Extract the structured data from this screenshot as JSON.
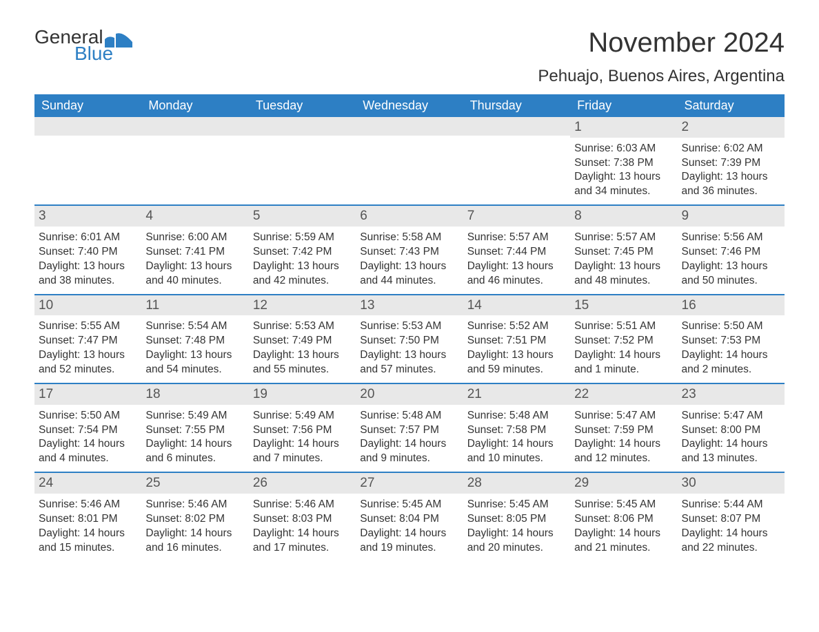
{
  "brand": {
    "general": "General",
    "blue": "Blue",
    "wave_color": "#2d7fc4"
  },
  "title": "November 2024",
  "location": "Pehuajo, Buenos Aires, Argentina",
  "colors": {
    "header_bg": "#2d7fc4",
    "header_text": "#ffffff",
    "day_num_bg": "#e8e8e8",
    "week_border": "#2d7fc4",
    "text": "#333333",
    "background": "#ffffff"
  },
  "typography": {
    "month_title_fontsize": 40,
    "location_fontsize": 24,
    "day_header_fontsize": 18,
    "day_num_fontsize": 19,
    "cell_fontsize": 15.5,
    "font_family": "Arial"
  },
  "day_headers": [
    "Sunday",
    "Monday",
    "Tuesday",
    "Wednesday",
    "Thursday",
    "Friday",
    "Saturday"
  ],
  "weeks": [
    [
      {
        "empty": true
      },
      {
        "empty": true
      },
      {
        "empty": true
      },
      {
        "empty": true
      },
      {
        "empty": true
      },
      {
        "num": "1",
        "sunrise": "Sunrise: 6:03 AM",
        "sunset": "Sunset: 7:38 PM",
        "daylight1": "Daylight: 13 hours",
        "daylight2": "and 34 minutes."
      },
      {
        "num": "2",
        "sunrise": "Sunrise: 6:02 AM",
        "sunset": "Sunset: 7:39 PM",
        "daylight1": "Daylight: 13 hours",
        "daylight2": "and 36 minutes."
      }
    ],
    [
      {
        "num": "3",
        "sunrise": "Sunrise: 6:01 AM",
        "sunset": "Sunset: 7:40 PM",
        "daylight1": "Daylight: 13 hours",
        "daylight2": "and 38 minutes."
      },
      {
        "num": "4",
        "sunrise": "Sunrise: 6:00 AM",
        "sunset": "Sunset: 7:41 PM",
        "daylight1": "Daylight: 13 hours",
        "daylight2": "and 40 minutes."
      },
      {
        "num": "5",
        "sunrise": "Sunrise: 5:59 AM",
        "sunset": "Sunset: 7:42 PM",
        "daylight1": "Daylight: 13 hours",
        "daylight2": "and 42 minutes."
      },
      {
        "num": "6",
        "sunrise": "Sunrise: 5:58 AM",
        "sunset": "Sunset: 7:43 PM",
        "daylight1": "Daylight: 13 hours",
        "daylight2": "and 44 minutes."
      },
      {
        "num": "7",
        "sunrise": "Sunrise: 5:57 AM",
        "sunset": "Sunset: 7:44 PM",
        "daylight1": "Daylight: 13 hours",
        "daylight2": "and 46 minutes."
      },
      {
        "num": "8",
        "sunrise": "Sunrise: 5:57 AM",
        "sunset": "Sunset: 7:45 PM",
        "daylight1": "Daylight: 13 hours",
        "daylight2": "and 48 minutes."
      },
      {
        "num": "9",
        "sunrise": "Sunrise: 5:56 AM",
        "sunset": "Sunset: 7:46 PM",
        "daylight1": "Daylight: 13 hours",
        "daylight2": "and 50 minutes."
      }
    ],
    [
      {
        "num": "10",
        "sunrise": "Sunrise: 5:55 AM",
        "sunset": "Sunset: 7:47 PM",
        "daylight1": "Daylight: 13 hours",
        "daylight2": "and 52 minutes."
      },
      {
        "num": "11",
        "sunrise": "Sunrise: 5:54 AM",
        "sunset": "Sunset: 7:48 PM",
        "daylight1": "Daylight: 13 hours",
        "daylight2": "and 54 minutes."
      },
      {
        "num": "12",
        "sunrise": "Sunrise: 5:53 AM",
        "sunset": "Sunset: 7:49 PM",
        "daylight1": "Daylight: 13 hours",
        "daylight2": "and 55 minutes."
      },
      {
        "num": "13",
        "sunrise": "Sunrise: 5:53 AM",
        "sunset": "Sunset: 7:50 PM",
        "daylight1": "Daylight: 13 hours",
        "daylight2": "and 57 minutes."
      },
      {
        "num": "14",
        "sunrise": "Sunrise: 5:52 AM",
        "sunset": "Sunset: 7:51 PM",
        "daylight1": "Daylight: 13 hours",
        "daylight2": "and 59 minutes."
      },
      {
        "num": "15",
        "sunrise": "Sunrise: 5:51 AM",
        "sunset": "Sunset: 7:52 PM",
        "daylight1": "Daylight: 14 hours",
        "daylight2": "and 1 minute."
      },
      {
        "num": "16",
        "sunrise": "Sunrise: 5:50 AM",
        "sunset": "Sunset: 7:53 PM",
        "daylight1": "Daylight: 14 hours",
        "daylight2": "and 2 minutes."
      }
    ],
    [
      {
        "num": "17",
        "sunrise": "Sunrise: 5:50 AM",
        "sunset": "Sunset: 7:54 PM",
        "daylight1": "Daylight: 14 hours",
        "daylight2": "and 4 minutes."
      },
      {
        "num": "18",
        "sunrise": "Sunrise: 5:49 AM",
        "sunset": "Sunset: 7:55 PM",
        "daylight1": "Daylight: 14 hours",
        "daylight2": "and 6 minutes."
      },
      {
        "num": "19",
        "sunrise": "Sunrise: 5:49 AM",
        "sunset": "Sunset: 7:56 PM",
        "daylight1": "Daylight: 14 hours",
        "daylight2": "and 7 minutes."
      },
      {
        "num": "20",
        "sunrise": "Sunrise: 5:48 AM",
        "sunset": "Sunset: 7:57 PM",
        "daylight1": "Daylight: 14 hours",
        "daylight2": "and 9 minutes."
      },
      {
        "num": "21",
        "sunrise": "Sunrise: 5:48 AM",
        "sunset": "Sunset: 7:58 PM",
        "daylight1": "Daylight: 14 hours",
        "daylight2": "and 10 minutes."
      },
      {
        "num": "22",
        "sunrise": "Sunrise: 5:47 AM",
        "sunset": "Sunset: 7:59 PM",
        "daylight1": "Daylight: 14 hours",
        "daylight2": "and 12 minutes."
      },
      {
        "num": "23",
        "sunrise": "Sunrise: 5:47 AM",
        "sunset": "Sunset: 8:00 PM",
        "daylight1": "Daylight: 14 hours",
        "daylight2": "and 13 minutes."
      }
    ],
    [
      {
        "num": "24",
        "sunrise": "Sunrise: 5:46 AM",
        "sunset": "Sunset: 8:01 PM",
        "daylight1": "Daylight: 14 hours",
        "daylight2": "and 15 minutes."
      },
      {
        "num": "25",
        "sunrise": "Sunrise: 5:46 AM",
        "sunset": "Sunset: 8:02 PM",
        "daylight1": "Daylight: 14 hours",
        "daylight2": "and 16 minutes."
      },
      {
        "num": "26",
        "sunrise": "Sunrise: 5:46 AM",
        "sunset": "Sunset: 8:03 PM",
        "daylight1": "Daylight: 14 hours",
        "daylight2": "and 17 minutes."
      },
      {
        "num": "27",
        "sunrise": "Sunrise: 5:45 AM",
        "sunset": "Sunset: 8:04 PM",
        "daylight1": "Daylight: 14 hours",
        "daylight2": "and 19 minutes."
      },
      {
        "num": "28",
        "sunrise": "Sunrise: 5:45 AM",
        "sunset": "Sunset: 8:05 PM",
        "daylight1": "Daylight: 14 hours",
        "daylight2": "and 20 minutes."
      },
      {
        "num": "29",
        "sunrise": "Sunrise: 5:45 AM",
        "sunset": "Sunset: 8:06 PM",
        "daylight1": "Daylight: 14 hours",
        "daylight2": "and 21 minutes."
      },
      {
        "num": "30",
        "sunrise": "Sunrise: 5:44 AM",
        "sunset": "Sunset: 8:07 PM",
        "daylight1": "Daylight: 14 hours",
        "daylight2": "and 22 minutes."
      }
    ]
  ]
}
